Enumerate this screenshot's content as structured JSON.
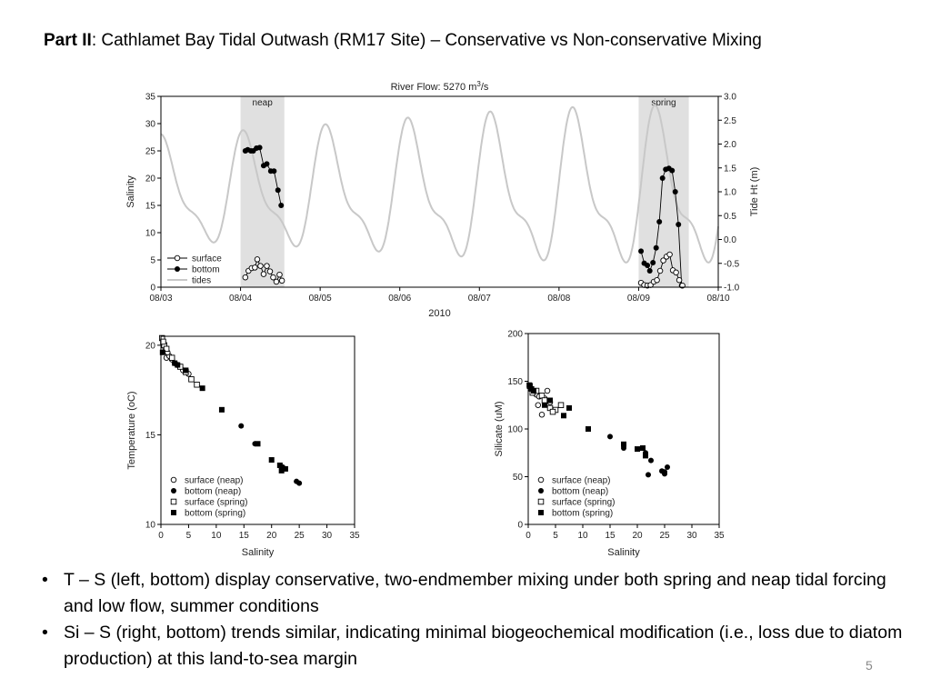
{
  "slide": {
    "title_bold": "Part II",
    "title_rest": ": Cathlamet Bay Tidal Outwash (RM17 Site) – Conservative vs Non-conservative Mixing",
    "bullets": [
      "T – S (left, bottom) display conservative, two-endmember mixing under both spring and neap tidal forcing and low flow, summer conditions",
      "Si – S (right, bottom) trends similar, indicating minimal biogeochemical modification (i.e., loss due to diatom production) at this land-to-sea margin"
    ],
    "page_number": "5",
    "bullet_char": "•"
  },
  "chart_data": [
    {
      "type": "line",
      "title": "River Flow: 5270 m3/s",
      "title_main": "River Flow: 5270 m",
      "title_sup": "3",
      "title_tail": "/s",
      "xlabel": "2010",
      "ylabel": "Salinity",
      "y2label": "Tide Ht (m)",
      "x_ticks": [
        "08/03",
        "08/04",
        "08/05",
        "08/06",
        "08/07",
        "08/08",
        "08/09",
        "08/10"
      ],
      "xlim_days": [
        3,
        10
      ],
      "ylim": [
        0,
        35
      ],
      "y_ticks": [
        "0",
        "5",
        "10",
        "15",
        "20",
        "25",
        "30",
        "35"
      ],
      "y2lim": [
        -1.0,
        3.0
      ],
      "y2_ticks": [
        "-1.0",
        "-0.5",
        "0.0",
        "0.5",
        "1.0",
        "1.5",
        "2.0",
        "2.5",
        "3.0"
      ],
      "shaded": [
        {
          "label": "neap",
          "x0": 4.0,
          "x1": 4.55
        },
        {
          "label": "spring",
          "x0": 9.0,
          "x1": 9.63
        }
      ],
      "legend": [
        "surface",
        "bottom",
        "tides"
      ],
      "legend_position": "bottom-left",
      "colors": {
        "tides": "#c8c8c8",
        "shade": "#e0e0e0",
        "series": "#000000"
      },
      "series": [
        {
          "name": "bottom",
          "x": [
            4.06,
            4.09,
            4.13,
            4.16,
            4.2,
            4.24,
            4.29,
            4.33,
            4.38,
            4.42,
            4.47,
            4.51
          ],
          "y": [
            25.0,
            25.2,
            25.0,
            25.0,
            25.5,
            25.6,
            22.3,
            22.6,
            21.3,
            21.3,
            17.8,
            15.0
          ]
        },
        {
          "name": "surface",
          "x": [
            4.06,
            4.1,
            4.14,
            4.18,
            4.21,
            4.25,
            4.29,
            4.33,
            4.37,
            4.41,
            4.45,
            4.49,
            4.52
          ],
          "y": [
            1.8,
            3.0,
            3.5,
            3.6,
            5.1,
            3.9,
            2.4,
            3.9,
            2.9,
            1.8,
            1.0,
            2.3,
            1.2
          ]
        },
        {
          "name": "bottom",
          "x": [
            9.03,
            9.07,
            9.11,
            9.14,
            9.18,
            9.22,
            9.26,
            9.3,
            9.34,
            9.38,
            9.42,
            9.46,
            9.5,
            9.54
          ],
          "y": [
            6.6,
            4.4,
            4.0,
            3.0,
            4.5,
            7.2,
            12.0,
            20.0,
            21.6,
            21.8,
            21.4,
            17.5,
            11.5,
            0.3
          ]
        },
        {
          "name": "surface",
          "x": [
            9.03,
            9.07,
            9.11,
            9.15,
            9.19,
            9.23,
            9.27,
            9.31,
            9.35,
            9.39,
            9.43,
            9.47,
            9.51,
            9.55
          ],
          "y": [
            0.8,
            0.4,
            0.3,
            0.4,
            1.0,
            1.3,
            3.0,
            4.9,
            5.6,
            6.0,
            3.1,
            2.7,
            1.3,
            0.3
          ]
        }
      ]
    },
    {
      "type": "scatter",
      "xlabel": "Salinity",
      "ylabel": "Temperature (oC)",
      "xlim": [
        0,
        35
      ],
      "ylim": [
        10,
        20.5
      ],
      "x_ticks": [
        "0",
        "5",
        "10",
        "15",
        "20",
        "25",
        "30",
        "35"
      ],
      "y_ticks": [
        "10",
        "15",
        "20"
      ],
      "legend": [
        "surface (neap)",
        "bottom (neap)",
        "surface (spring)",
        "bottom (spring)"
      ],
      "legend_position": "bottom-left",
      "series": [
        {
          "name": "surface (neap)",
          "x": [
            0.5,
            1.0,
            1.5,
            2.0,
            2.5,
            1.2,
            3.0,
            4.0,
            5.0,
            0.8
          ],
          "y": [
            20.0,
            19.3,
            19.4,
            19.2,
            19.0,
            19.6,
            18.9,
            18.6,
            18.4,
            19.8
          ]
        },
        {
          "name": "bottom (neap)",
          "x": [
            14.5,
            17.0,
            22.0,
            24.5,
            25.0
          ],
          "y": [
            15.5,
            14.5,
            13.2,
            12.4,
            12.3
          ]
        },
        {
          "name": "surface (spring)",
          "x": [
            0.2,
            0.6,
            1.0,
            2.0,
            3.5,
            4.5,
            5.5,
            6.5,
            0.4
          ],
          "y": [
            20.4,
            20.0,
            19.8,
            19.3,
            18.8,
            18.5,
            18.1,
            17.8,
            20.2
          ]
        },
        {
          "name": "bottom (spring)",
          "x": [
            0.3,
            2.5,
            3.0,
            4.5,
            7.5,
            11.0,
            17.5,
            20.0,
            21.5,
            22.5,
            21.8
          ],
          "y": [
            19.6,
            19.0,
            18.9,
            18.6,
            17.6,
            16.4,
            14.5,
            13.6,
            13.3,
            13.1,
            13.0
          ]
        }
      ]
    },
    {
      "type": "scatter",
      "xlabel": "Salinity",
      "ylabel": "Silicate (uM)",
      "xlim": [
        0,
        35
      ],
      "ylim": [
        0,
        200
      ],
      "x_ticks": [
        "0",
        "5",
        "10",
        "15",
        "20",
        "25",
        "30",
        "35"
      ],
      "y_ticks": [
        "0",
        "50",
        "100",
        "150",
        "200"
      ],
      "legend": [
        "surface (neap)",
        "bottom (neap)",
        "surface (spring)",
        "bottom (spring)"
      ],
      "legend_position": "bottom-left",
      "series": [
        {
          "name": "surface (neap)",
          "x": [
            0.5,
            1.0,
            1.5,
            2.0,
            2.5,
            3.0,
            3.5,
            4.0,
            1.8
          ],
          "y": [
            142,
            138,
            136,
            134,
            115,
            132,
            140,
            128,
            125
          ]
        },
        {
          "name": "bottom (neap)",
          "x": [
            1.0,
            15.0,
            17.5,
            21.5,
            22.0,
            22.5,
            24.5,
            25.0,
            25.5,
            25.0
          ],
          "y": [
            140,
            92,
            80,
            75,
            52,
            67,
            56,
            55,
            60,
            53
          ]
        },
        {
          "name": "surface (spring)",
          "x": [
            0.3,
            0.8,
            1.5,
            2.5,
            3.0,
            4.0,
            5.0,
            6.0,
            4.5
          ],
          "y": [
            145,
            138,
            140,
            135,
            130,
            122,
            120,
            125,
            118
          ]
        },
        {
          "name": "bottom (spring)",
          "x": [
            0.2,
            0.6,
            1.0,
            3.0,
            4.0,
            6.5,
            7.5,
            11.0,
            17.5,
            20.0,
            21.0,
            21.5
          ],
          "y": [
            146,
            142,
            140,
            125,
            130,
            114,
            122,
            100,
            84,
            79,
            80,
            72
          ]
        }
      ]
    }
  ]
}
